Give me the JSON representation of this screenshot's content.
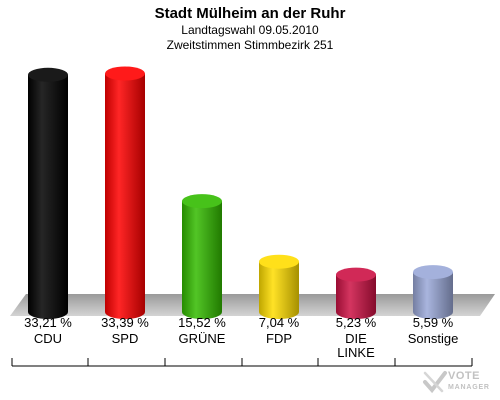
{
  "header": {
    "title": "Stadt Mülheim an der Ruhr",
    "subtitle1": "Landtagswahl 09.05.2010",
    "subtitle2": "Zweitstimmen Stimmbezirk 251"
  },
  "chart_data": {
    "type": "bar",
    "title": "Stadt Mülheim an der Ruhr",
    "categories": [
      "CDU",
      "SPD",
      "GRÜNE",
      "FDP",
      "DIE LINKE",
      "Sonstige"
    ],
    "values": [
      33.21,
      33.39,
      15.52,
      7.04,
      5.23,
      5.59
    ],
    "value_labels": [
      "33,21 %",
      "33,39 %",
      "15,52 %",
      "7,04 %",
      "5,23 %",
      "5,59 %"
    ],
    "colors": [
      "#000000",
      "#ff0000",
      "#33bb00",
      "#ffdd00",
      "#cc1144",
      "#9aa8d8"
    ],
    "ylim": [
      0,
      35
    ],
    "grid": false,
    "legend": "none"
  },
  "logo": {
    "line1": "VOTE",
    "line2": "MANAGER",
    "icon": "vote-check-icon"
  }
}
